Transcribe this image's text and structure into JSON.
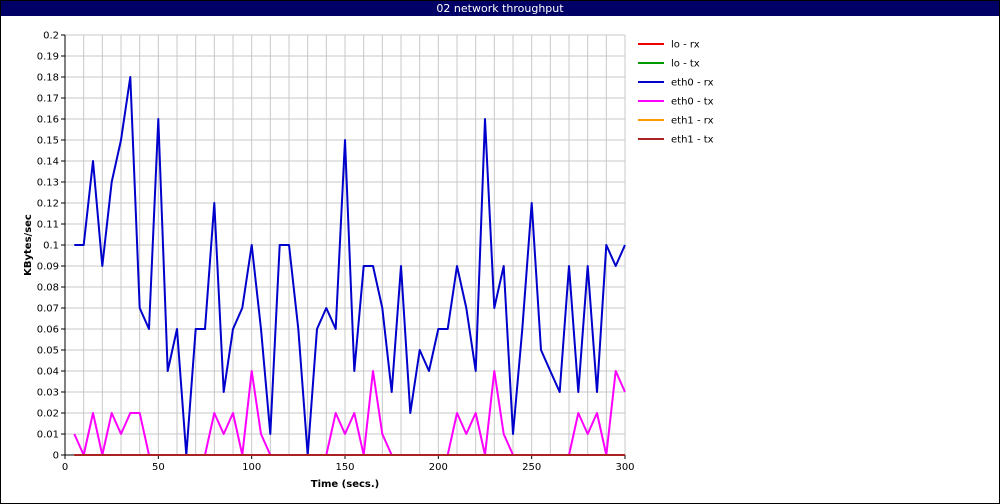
{
  "chart_data": {
    "type": "line",
    "title": "02 network throughput",
    "xlabel": "Time (secs.)",
    "ylabel": "KBytes/sec",
    "xlim": [
      0,
      300
    ],
    "ylim": [
      0,
      0.2
    ],
    "xticks": [
      "0",
      "50",
      "100",
      "150",
      "200",
      "250",
      "300"
    ],
    "yticks": [
      "0",
      "0.01",
      "0.02",
      "0.03",
      "0.04",
      "0.05",
      "0.06",
      "0.07",
      "0.08",
      "0.09",
      "0.1",
      "0.11",
      "0.12",
      "0.13",
      "0.14",
      "0.15",
      "0.16",
      "0.17",
      "0.18",
      "0.19",
      "0.2"
    ],
    "grid": true,
    "legend_position": "right",
    "x": [
      5,
      10,
      15,
      20,
      25,
      30,
      35,
      40,
      45,
      50,
      55,
      60,
      65,
      70,
      75,
      80,
      85,
      90,
      95,
      100,
      105,
      110,
      115,
      120,
      125,
      130,
      135,
      140,
      145,
      150,
      155,
      160,
      165,
      170,
      175,
      180,
      185,
      190,
      195,
      200,
      205,
      210,
      215,
      220,
      225,
      230,
      235,
      240,
      245,
      250,
      255,
      260,
      265,
      270,
      275,
      280,
      285,
      290,
      295,
      300
    ],
    "series": [
      {
        "name": "lo - rx",
        "color": "#ee0000",
        "values": [
          0,
          0,
          0,
          0,
          0,
          0,
          0,
          0,
          0,
          0,
          0,
          0,
          0,
          0,
          0,
          0,
          0,
          0,
          0,
          0,
          0,
          0,
          0,
          0,
          0,
          0,
          0,
          0,
          0,
          0,
          0,
          0,
          0,
          0,
          0,
          0,
          0,
          0,
          0,
          0,
          0,
          0,
          0,
          0,
          0,
          0,
          0,
          0,
          0,
          0,
          0,
          0,
          0,
          0,
          0,
          0,
          0,
          0,
          0,
          0
        ]
      },
      {
        "name": "lo - tx",
        "color": "#009900",
        "values": [
          0,
          0,
          0,
          0,
          0,
          0,
          0,
          0,
          0,
          0,
          0,
          0,
          0,
          0,
          0,
          0,
          0,
          0,
          0,
          0,
          0,
          0,
          0,
          0,
          0,
          0,
          0,
          0,
          0,
          0,
          0,
          0,
          0,
          0,
          0,
          0,
          0,
          0,
          0,
          0,
          0,
          0,
          0,
          0,
          0,
          0,
          0,
          0,
          0,
          0,
          0,
          0,
          0,
          0,
          0,
          0,
          0,
          0,
          0,
          0
        ]
      },
      {
        "name": "eth0 - rx",
        "color": "#0000cc",
        "values": [
          0.1,
          0.1,
          0.14,
          0.09,
          0.13,
          0.15,
          0.18,
          0.07,
          0.06,
          0.16,
          0.04,
          0.06,
          0.0,
          0.06,
          0.06,
          0.12,
          0.03,
          0.06,
          0.07,
          0.1,
          0.06,
          0.01,
          0.1,
          0.1,
          0.06,
          0.0,
          0.06,
          0.07,
          0.06,
          0.15,
          0.04,
          0.09,
          0.09,
          0.07,
          0.03,
          0.09,
          0.02,
          0.05,
          0.04,
          0.06,
          0.06,
          0.09,
          0.07,
          0.04,
          0.16,
          0.07,
          0.09,
          0.01,
          0.06,
          0.12,
          0.05,
          0.04,
          0.03,
          0.09,
          0.03,
          0.09,
          0.03,
          0.1,
          0.09,
          0.1
        ]
      },
      {
        "name": "eth0 - tx",
        "color": "#ff00ff",
        "values": [
          0.01,
          0.0,
          0.02,
          0.0,
          0.02,
          0.01,
          0.02,
          0.02,
          0.0,
          0.0,
          0.0,
          0.0,
          0.0,
          0.0,
          0.0,
          0.02,
          0.01,
          0.02,
          0.0,
          0.04,
          0.01,
          0.0,
          0.0,
          0.0,
          0.0,
          0.0,
          0.0,
          0.0,
          0.02,
          0.01,
          0.02,
          0.0,
          0.04,
          0.01,
          0.0,
          0.0,
          0.0,
          0.0,
          0.0,
          0.0,
          0.0,
          0.02,
          0.01,
          0.02,
          0.0,
          0.04,
          0.01,
          0.0,
          0.0,
          0.0,
          0.0,
          0.0,
          0.0,
          0.0,
          0.02,
          0.01,
          0.02,
          0.0,
          0.04,
          0.03
        ]
      },
      {
        "name": "eth1 - rx",
        "color": "#ff9900",
        "values": [
          0,
          0,
          0,
          0,
          0,
          0,
          0,
          0,
          0,
          0,
          0,
          0,
          0,
          0,
          0,
          0,
          0,
          0,
          0,
          0,
          0,
          0,
          0,
          0,
          0,
          0,
          0,
          0,
          0,
          0,
          0,
          0,
          0,
          0,
          0,
          0,
          0,
          0,
          0,
          0,
          0,
          0,
          0,
          0,
          0,
          0,
          0,
          0,
          0,
          0,
          0,
          0,
          0,
          0,
          0,
          0,
          0,
          0,
          0,
          0
        ]
      },
      {
        "name": "eth1 - tx",
        "color": "#aa2222",
        "values": [
          0,
          0,
          0,
          0,
          0,
          0,
          0,
          0,
          0,
          0,
          0,
          0,
          0,
          0,
          0,
          0,
          0,
          0,
          0,
          0,
          0,
          0,
          0,
          0,
          0,
          0,
          0,
          0,
          0,
          0,
          0,
          0,
          0,
          0,
          0,
          0,
          0,
          0,
          0,
          0,
          0,
          0,
          0,
          0,
          0,
          0,
          0,
          0,
          0,
          0,
          0,
          0,
          0,
          0,
          0,
          0,
          0,
          0,
          0,
          0
        ]
      }
    ]
  }
}
